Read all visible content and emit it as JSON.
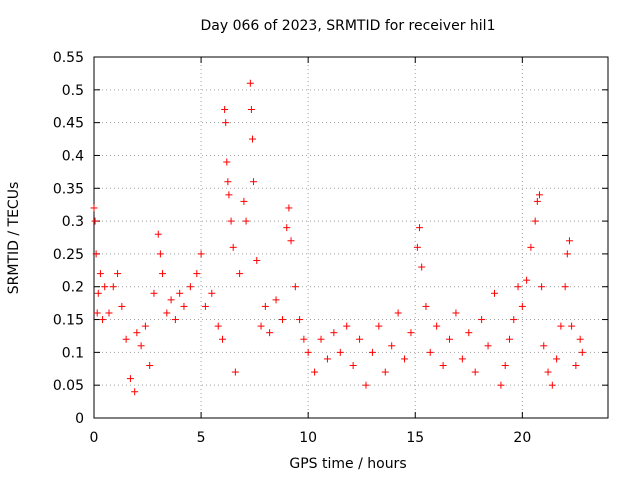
{
  "chart_data": {
    "type": "scatter",
    "title": "Day 066 of 2023, SRMTID for receiver hil1",
    "xlabel": "GPS time / hours",
    "ylabel": "SRMTID / TECUs",
    "xlim": [
      0,
      24
    ],
    "ylim": [
      0,
      0.55
    ],
    "xticks": [
      0,
      5,
      10,
      15,
      20
    ],
    "yticks": [
      0,
      0.05,
      0.1,
      0.15,
      0.2,
      0.25,
      0.3,
      0.35,
      0.4,
      0.45,
      0.5,
      0.55
    ],
    "xtick_labels": [
      "0",
      "5",
      "10",
      "15",
      "20"
    ],
    "ytick_labels": [
      "0",
      "0.05",
      "0.1",
      "0.15",
      "0.2",
      "0.25",
      "0.3",
      "0.35",
      "0.4",
      "0.45",
      "0.5",
      "0.55"
    ],
    "grid": true,
    "marker": "+",
    "color": "#ff0000",
    "series": [
      {
        "values": [
          [
            0.0,
            0.32
          ],
          [
            0.05,
            0.3
          ],
          [
            0.1,
            0.25
          ],
          [
            0.15,
            0.16
          ],
          [
            0.2,
            0.19
          ],
          [
            0.3,
            0.22
          ],
          [
            0.4,
            0.15
          ],
          [
            0.5,
            0.2
          ],
          [
            0.7,
            0.16
          ],
          [
            0.9,
            0.2
          ],
          [
            1.1,
            0.22
          ],
          [
            1.3,
            0.17
          ],
          [
            1.5,
            0.12
          ],
          [
            1.7,
            0.06
          ],
          [
            1.9,
            0.04
          ],
          [
            2.0,
            0.13
          ],
          [
            2.2,
            0.11
          ],
          [
            2.4,
            0.14
          ],
          [
            2.6,
            0.08
          ],
          [
            2.8,
            0.19
          ],
          [
            3.0,
            0.28
          ],
          [
            3.1,
            0.25
          ],
          [
            3.2,
            0.22
          ],
          [
            3.4,
            0.16
          ],
          [
            3.6,
            0.18
          ],
          [
            3.8,
            0.15
          ],
          [
            4.0,
            0.19
          ],
          [
            4.2,
            0.17
          ],
          [
            4.5,
            0.2
          ],
          [
            4.8,
            0.22
          ],
          [
            5.0,
            0.25
          ],
          [
            5.2,
            0.17
          ],
          [
            5.5,
            0.19
          ],
          [
            5.8,
            0.14
          ],
          [
            6.0,
            0.12
          ],
          [
            6.1,
            0.47
          ],
          [
            6.15,
            0.45
          ],
          [
            6.2,
            0.39
          ],
          [
            6.25,
            0.36
          ],
          [
            6.3,
            0.34
          ],
          [
            6.4,
            0.3
          ],
          [
            6.5,
            0.26
          ],
          [
            6.6,
            0.07
          ],
          [
            6.8,
            0.22
          ],
          [
            7.0,
            0.33
          ],
          [
            7.1,
            0.3
          ],
          [
            7.3,
            0.51
          ],
          [
            7.35,
            0.47
          ],
          [
            7.4,
            0.425
          ],
          [
            7.45,
            0.36
          ],
          [
            7.6,
            0.24
          ],
          [
            7.8,
            0.14
          ],
          [
            8.0,
            0.17
          ],
          [
            8.2,
            0.13
          ],
          [
            8.5,
            0.18
          ],
          [
            8.8,
            0.15
          ],
          [
            9.0,
            0.29
          ],
          [
            9.1,
            0.32
          ],
          [
            9.2,
            0.27
          ],
          [
            9.4,
            0.2
          ],
          [
            9.6,
            0.15
          ],
          [
            9.8,
            0.12
          ],
          [
            10.0,
            0.1
          ],
          [
            10.3,
            0.07
          ],
          [
            10.6,
            0.12
          ],
          [
            10.9,
            0.09
          ],
          [
            11.2,
            0.13
          ],
          [
            11.5,
            0.1
          ],
          [
            11.8,
            0.14
          ],
          [
            12.1,
            0.08
          ],
          [
            12.4,
            0.12
          ],
          [
            12.7,
            0.05
          ],
          [
            13.0,
            0.1
          ],
          [
            13.3,
            0.14
          ],
          [
            13.6,
            0.07
          ],
          [
            13.9,
            0.11
          ],
          [
            14.2,
            0.16
          ],
          [
            14.5,
            0.09
          ],
          [
            14.8,
            0.13
          ],
          [
            15.1,
            0.26
          ],
          [
            15.2,
            0.29
          ],
          [
            15.3,
            0.23
          ],
          [
            15.5,
            0.17
          ],
          [
            15.7,
            0.1
          ],
          [
            16.0,
            0.14
          ],
          [
            16.3,
            0.08
          ],
          [
            16.6,
            0.12
          ],
          [
            16.9,
            0.16
          ],
          [
            17.2,
            0.09
          ],
          [
            17.5,
            0.13
          ],
          [
            17.8,
            0.07
          ],
          [
            18.1,
            0.15
          ],
          [
            18.4,
            0.11
          ],
          [
            18.7,
            0.19
          ],
          [
            19.0,
            0.05
          ],
          [
            19.2,
            0.08
          ],
          [
            19.4,
            0.12
          ],
          [
            19.6,
            0.15
          ],
          [
            19.8,
            0.2
          ],
          [
            20.0,
            0.17
          ],
          [
            20.2,
            0.21
          ],
          [
            20.4,
            0.26
          ],
          [
            20.6,
            0.3
          ],
          [
            20.7,
            0.33
          ],
          [
            20.8,
            0.34
          ],
          [
            20.9,
            0.2
          ],
          [
            21.0,
            0.11
          ],
          [
            21.2,
            0.07
          ],
          [
            21.4,
            0.05
          ],
          [
            21.6,
            0.09
          ],
          [
            21.8,
            0.14
          ],
          [
            22.0,
            0.2
          ],
          [
            22.1,
            0.25
          ],
          [
            22.2,
            0.27
          ],
          [
            22.3,
            0.14
          ],
          [
            22.5,
            0.08
          ],
          [
            22.7,
            0.12
          ],
          [
            22.8,
            0.1
          ]
        ]
      }
    ]
  }
}
